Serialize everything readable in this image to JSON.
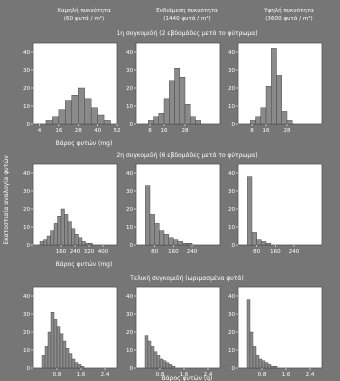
{
  "colors": {
    "background": "#767676",
    "panel": "#ffffff",
    "bar": "#8a8a8a",
    "bar_edge": "#3a3a3a",
    "text": "#ffffff"
  },
  "column_headers": [
    {
      "line1": "Χαμηλή πυκνότητα",
      "line2": "(60 φυτά / m²)"
    },
    {
      "line1": "Ενδιάμεση πυκνότητα",
      "line2": "(1440 φυτά / m²)"
    },
    {
      "line1": "Υψηλή πυκνότητα",
      "line2": "(3600 φυτά / m²)"
    }
  ],
  "y_axis_label": "Εκατοστιαία αναλογία φυτών",
  "chart_data": [
    {
      "type": "bar",
      "row": 0,
      "col": 0,
      "title": "1η συγκομιδή (2 εβδομάδες μετά το φύτρωμα)",
      "xlabel": "Βάρος φυτών (mg)",
      "xlim": [
        0,
        52
      ],
      "ylim": [
        0,
        45
      ],
      "x_ticks": [
        4,
        16,
        28,
        40,
        52
      ],
      "y_ticks": [
        0,
        10,
        20,
        30,
        40
      ],
      "bin_width": 4,
      "bin_starts": [
        8,
        12,
        16,
        20,
        24,
        28,
        32,
        36,
        40,
        44
      ],
      "values": [
        2,
        4,
        8,
        13,
        16,
        20,
        14,
        9,
        5,
        2
      ]
    },
    {
      "type": "bar",
      "row": 0,
      "col": 1,
      "title": "",
      "xlabel": "",
      "xlim": [
        0,
        48
      ],
      "ylim": [
        0,
        45
      ],
      "x_ticks": [
        8,
        16,
        28
      ],
      "y_ticks": [
        0,
        10,
        20,
        30,
        40
      ],
      "bin_width": 3,
      "bin_starts": [
        7,
        10,
        13,
        16,
        19,
        22,
        25,
        28,
        31,
        34
      ],
      "values": [
        2,
        4,
        6,
        14,
        24,
        31,
        26,
        11,
        4,
        2
      ]
    },
    {
      "type": "bar",
      "row": 0,
      "col": 2,
      "title": "",
      "xlabel": "",
      "xlim": [
        0,
        48
      ],
      "ylim": [
        0,
        45
      ],
      "x_ticks": [
        8,
        16,
        28
      ],
      "y_ticks": [
        0,
        10,
        20,
        30,
        40
      ],
      "bin_width": 3,
      "bin_starts": [
        7,
        10,
        13,
        16,
        19,
        22,
        25,
        28
      ],
      "values": [
        2,
        4,
        9,
        21,
        42,
        27,
        7,
        2
      ]
    },
    {
      "type": "bar",
      "row": 1,
      "col": 0,
      "title": "2η συγκομιδή (6 εβδομάδες μετά το φύτρωμα)",
      "xlabel": "Βάρος φυτών (mg)",
      "xlim": [
        0,
        480
      ],
      "ylim": [
        0,
        45
      ],
      "x_ticks": [
        160,
        240,
        320,
        400
      ],
      "y_ticks": [
        0,
        10,
        20,
        30,
        40
      ],
      "bin_width": 20,
      "bin_starts": [
        40,
        60,
        80,
        100,
        120,
        140,
        160,
        180,
        200,
        220,
        240,
        260,
        280,
        300,
        320
      ],
      "values": [
        2,
        3,
        5,
        8,
        12,
        16,
        20,
        17,
        13,
        9,
        6,
        4,
        2,
        1,
        1
      ]
    },
    {
      "type": "bar",
      "row": 1,
      "col": 1,
      "title": "",
      "xlabel": "",
      "xlim": [
        0,
        360
      ],
      "ylim": [
        0,
        45
      ],
      "x_ticks": [
        80,
        160,
        240
      ],
      "y_ticks": [
        0,
        10,
        20,
        30,
        40
      ],
      "bin_width": 20,
      "bin_starts": [
        40,
        60,
        80,
        100,
        120,
        140,
        160,
        180,
        200,
        220
      ],
      "values": [
        33,
        17,
        12,
        8,
        6,
        4,
        3,
        2,
        1,
        1
      ]
    },
    {
      "type": "bar",
      "row": 1,
      "col": 2,
      "title": "",
      "xlabel": "",
      "xlim": [
        0,
        360
      ],
      "ylim": [
        0,
        45
      ],
      "x_ticks": [
        80,
        160,
        240
      ],
      "y_ticks": [
        0,
        10,
        20,
        30,
        40
      ],
      "bin_width": 20,
      "bin_starts": [
        40,
        60,
        80,
        100,
        120
      ],
      "values": [
        38,
        7,
        3,
        2,
        1
      ]
    },
    {
      "type": "bar",
      "row": 2,
      "col": 0,
      "title": "Τελική συγκομιδή (ωριμασμένα φυτά)",
      "xlabel": "",
      "xlim": [
        0,
        2.8
      ],
      "ylim": [
        0,
        45
      ],
      "x_ticks": [
        0.8,
        1.6,
        2.4
      ],
      "y_ticks": [
        0,
        10,
        20,
        30,
        40
      ],
      "bin_width": 0.1,
      "bin_starts": [
        0.3,
        0.4,
        0.5,
        0.6,
        0.7,
        0.8,
        0.9,
        1.0,
        1.1,
        1.2,
        1.3,
        1.4,
        1.5,
        1.6
      ],
      "values": [
        7,
        12,
        20,
        31,
        27,
        23,
        19,
        15,
        11,
        8,
        5,
        3,
        2,
        1
      ]
    },
    {
      "type": "bar",
      "row": 2,
      "col": 1,
      "title": "",
      "xlabel": "Βάρος φυτών (g)",
      "xlim": [
        0,
        2.8
      ],
      "ylim": [
        0,
        45
      ],
      "x_ticks": [
        0.8,
        1.6,
        2.4
      ],
      "y_ticks": [
        0,
        10,
        20,
        30,
        40
      ],
      "bin_width": 0.1,
      "bin_starts": [
        0.3,
        0.4,
        0.5,
        0.6,
        0.7,
        0.8,
        0.9,
        1.0,
        1.1,
        1.2
      ],
      "values": [
        18,
        15,
        12,
        9,
        7,
        5,
        4,
        3,
        2,
        1
      ]
    },
    {
      "type": "bar",
      "row": 2,
      "col": 2,
      "title": "",
      "xlabel": "",
      "xlim": [
        0,
        2.8
      ],
      "ylim": [
        0,
        45
      ],
      "x_ticks": [
        0.8,
        1.6,
        2.4
      ],
      "y_ticks": [
        0,
        10,
        20,
        30,
        40
      ],
      "bin_width": 0.1,
      "bin_starts": [
        0.3,
        0.4,
        0.5,
        0.6,
        0.7,
        0.8,
        0.9,
        1.0,
        1.1,
        1.2
      ],
      "values": [
        38,
        20,
        12,
        7,
        5,
        4,
        3,
        2,
        1,
        1
      ]
    }
  ]
}
